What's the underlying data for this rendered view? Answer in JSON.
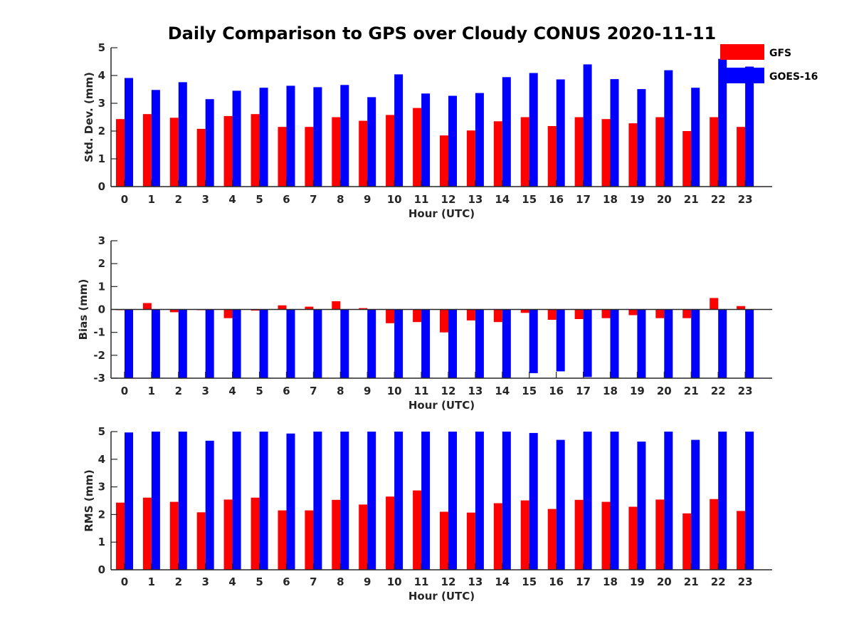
{
  "title": "Daily Comparison to GPS over Cloudy CONUS 2020-11-11",
  "colors": {
    "GFS": "#ff0000",
    "GOES-16": "#0000ff",
    "axis": "#262626"
  },
  "chart_data": [
    {
      "type": "bar",
      "id": "std",
      "xlabel": "Hour (UTC)",
      "ylabel": "Std. Dev. (mm)",
      "ylim": [
        0,
        5
      ],
      "yticks": [
        0,
        1,
        2,
        3,
        4,
        5
      ],
      "legend": "top-right",
      "categories": [
        "0",
        "1",
        "2",
        "3",
        "4",
        "5",
        "6",
        "7",
        "8",
        "9",
        "10",
        "11",
        "12",
        "13",
        "14",
        "15",
        "16",
        "17",
        "18",
        "19",
        "20",
        "21",
        "22",
        "23"
      ],
      "series": [
        {
          "name": "GFS",
          "values": [
            2.43,
            2.61,
            2.48,
            2.08,
            2.54,
            2.61,
            2.15,
            2.15,
            2.5,
            2.37,
            2.58,
            2.83,
            1.84,
            2.02,
            2.35,
            2.5,
            2.18,
            2.5,
            2.43,
            2.28,
            2.5,
            2.0,
            2.5,
            2.15
          ]
        },
        {
          "name": "GOES-16",
          "values": [
            3.91,
            3.48,
            3.76,
            3.15,
            3.45,
            3.56,
            3.63,
            3.58,
            3.66,
            3.22,
            4.04,
            3.35,
            3.27,
            3.37,
            3.94,
            4.09,
            3.86,
            4.4,
            3.87,
            3.51,
            4.19,
            3.56,
            4.6,
            4.32
          ]
        }
      ]
    },
    {
      "type": "bar",
      "id": "bias",
      "xlabel": "Hour (UTC)",
      "ylabel": "Bias (mm)",
      "ylim": [
        -3,
        3
      ],
      "yticks": [
        -3,
        -2,
        -1,
        0,
        1,
        2,
        3
      ],
      "categories": [
        "0",
        "1",
        "2",
        "3",
        "4",
        "5",
        "6",
        "7",
        "8",
        "9",
        "10",
        "11",
        "12",
        "13",
        "14",
        "15",
        "16",
        "17",
        "18",
        "19",
        "20",
        "21",
        "22",
        "23"
      ],
      "series": [
        {
          "name": "GFS",
          "values": [
            -0.03,
            0.28,
            -0.12,
            -0.03,
            -0.38,
            -0.05,
            0.18,
            0.12,
            0.36,
            0.06,
            -0.6,
            -0.55,
            -1.0,
            -0.48,
            -0.55,
            -0.15,
            -0.45,
            -0.42,
            -0.38,
            -0.25,
            -0.38,
            -0.38,
            0.5,
            0.15
          ]
        },
        {
          "name": "GOES-16",
          "values": [
            -3.0,
            -3.0,
            -3.0,
            -3.0,
            -3.0,
            -3.0,
            -3.0,
            -3.0,
            -3.0,
            -3.0,
            -3.0,
            -3.0,
            -3.0,
            -3.0,
            -3.0,
            -2.78,
            -2.7,
            -2.95,
            -3.0,
            -3.0,
            -3.0,
            -3.0,
            -3.0,
            -3.0
          ]
        }
      ]
    },
    {
      "type": "bar",
      "id": "rms",
      "xlabel": "Hour (UTC)",
      "ylabel": "RMS (mm)",
      "ylim": [
        0,
        5
      ],
      "yticks": [
        0,
        1,
        2,
        3,
        4,
        5
      ],
      "categories": [
        "0",
        "1",
        "2",
        "3",
        "4",
        "5",
        "6",
        "7",
        "8",
        "9",
        "10",
        "11",
        "12",
        "13",
        "14",
        "15",
        "16",
        "17",
        "18",
        "19",
        "20",
        "21",
        "22",
        "23"
      ],
      "series": [
        {
          "name": "GFS",
          "values": [
            2.43,
            2.61,
            2.46,
            2.08,
            2.54,
            2.61,
            2.15,
            2.15,
            2.53,
            2.36,
            2.65,
            2.87,
            2.1,
            2.07,
            2.41,
            2.51,
            2.2,
            2.53,
            2.46,
            2.28,
            2.54,
            2.04,
            2.56,
            2.13
          ]
        },
        {
          "name": "GOES-16",
          "values": [
            4.97,
            5.0,
            5.0,
            4.67,
            5.0,
            5.0,
            4.93,
            5.0,
            5.0,
            5.0,
            5.0,
            5.0,
            5.0,
            5.0,
            5.0,
            4.95,
            4.7,
            5.0,
            5.0,
            4.64,
            5.0,
            4.7,
            5.0,
            5.0
          ]
        }
      ]
    }
  ]
}
